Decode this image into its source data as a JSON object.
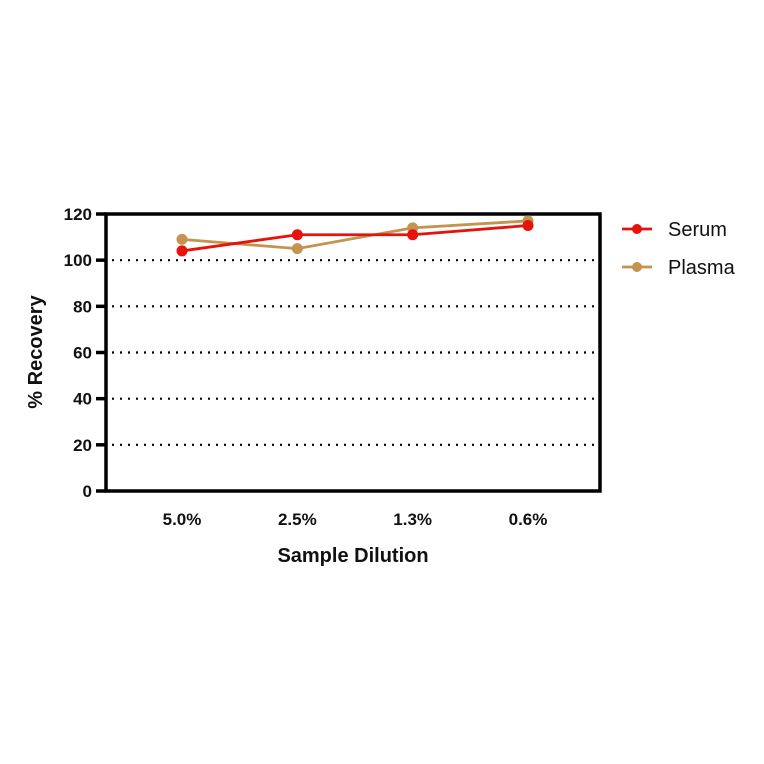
{
  "chart_data": {
    "type": "line",
    "title": "",
    "xlabel": "Sample Dilution",
    "ylabel": "% Recovery",
    "categories": [
      "5.0%",
      "2.5%",
      "1.3%",
      "0.6%"
    ],
    "series": [
      {
        "name": "Serum",
        "color": "#e8120c",
        "values": [
          104,
          111,
          111,
          115
        ]
      },
      {
        "name": "Plasma",
        "color": "#c4934f",
        "values": [
          109,
          105,
          114,
          117
        ]
      }
    ],
    "ylim": [
      0,
      120
    ],
    "yticks": [
      0,
      20,
      40,
      60,
      80,
      100,
      120
    ],
    "grid": "dotted horizontal at 20,40,60,80,100",
    "legend_position": "right"
  }
}
